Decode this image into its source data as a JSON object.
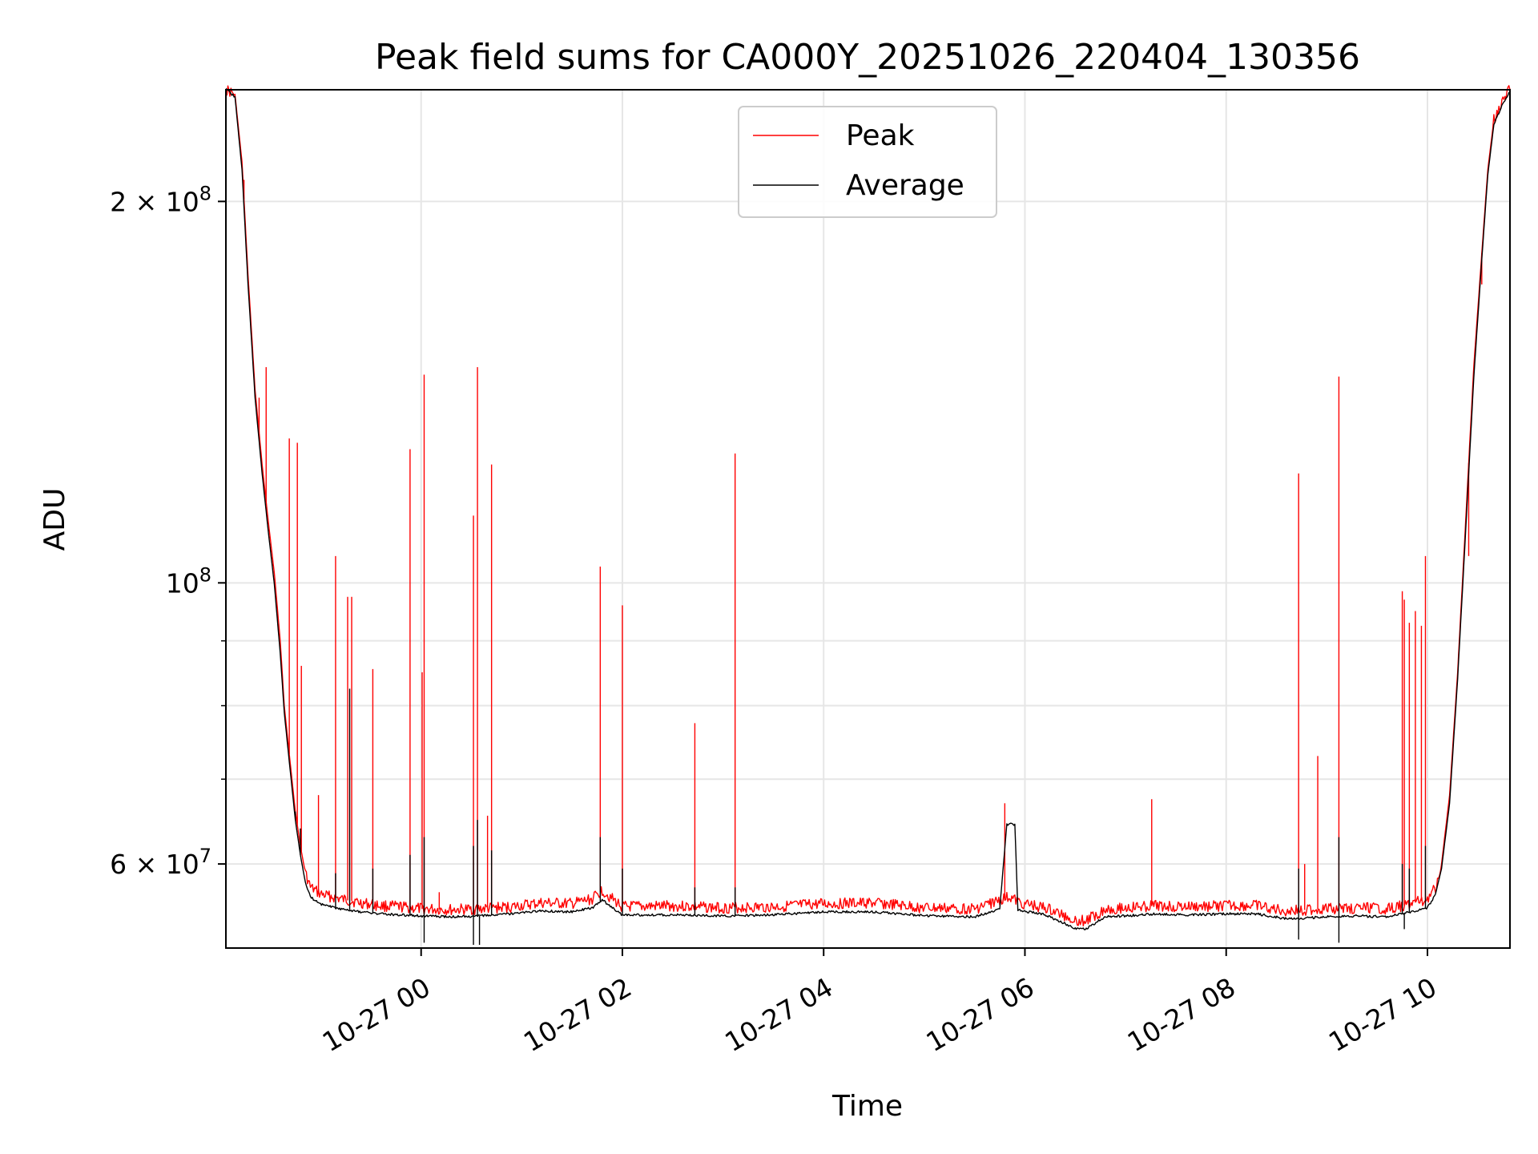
{
  "chart_data": {
    "type": "line",
    "title": "Peak field sums for CA000Y_20251026_220404_130356",
    "xlabel": "Time",
    "ylabel": "ADU",
    "yscale": "log",
    "ylim": [
      51500000,
      245000000
    ],
    "xlim": [
      -1.94,
      10.82
    ],
    "x_unit": "hours relative to 2025-10-27 00:00",
    "grid": true,
    "legend_position": "upper center",
    "x_ticks": [
      {
        "value": 0,
        "label": "10-27 00"
      },
      {
        "value": 2,
        "label": "10-27 02"
      },
      {
        "value": 4,
        "label": "10-27 04"
      },
      {
        "value": 6,
        "label": "10-27 06"
      },
      {
        "value": 8,
        "label": "10-27 08"
      },
      {
        "value": 10,
        "label": "10-27 10"
      }
    ],
    "y_major_ticks": [
      {
        "value": 60000000,
        "label_mantissa": "6",
        "label_exp": "7"
      },
      {
        "value": 100000000,
        "label_mantissa": "",
        "label_exp": "8"
      },
      {
        "value": 200000000,
        "label_mantissa": "2",
        "label_exp": "8"
      }
    ],
    "y_minor_ticks": [
      70000000,
      80000000,
      90000000
    ],
    "series": [
      {
        "name": "Peak",
        "color": "#ff0000",
        "baseline": [
          [
            -1.94,
            245000000
          ],
          [
            -1.85,
            243000000
          ],
          [
            -1.78,
            215000000
          ],
          [
            -1.72,
            175000000
          ],
          [
            -1.65,
            142000000
          ],
          [
            -1.58,
            124000000
          ],
          [
            -1.52,
            112000000
          ],
          [
            -1.46,
            102000000
          ],
          [
            -1.4,
            90000000
          ],
          [
            -1.36,
            80000000
          ],
          [
            -1.3,
            72000000
          ],
          [
            -1.25,
            66000000
          ],
          [
            -1.2,
            62000000
          ],
          [
            -1.15,
            59000000
          ],
          [
            -1.1,
            57500000
          ],
          [
            -1.0,
            56800000
          ],
          [
            -0.8,
            56300000
          ],
          [
            -0.6,
            55900000
          ],
          [
            -0.4,
            55600000
          ],
          [
            -0.2,
            55500000
          ],
          [
            0.0,
            55300000
          ],
          [
            0.3,
            55200000
          ],
          [
            0.6,
            55300000
          ],
          [
            0.9,
            55500000
          ],
          [
            1.2,
            55900000
          ],
          [
            1.5,
            55800000
          ],
          [
            1.7,
            56300000
          ],
          [
            1.8,
            57200000
          ],
          [
            1.9,
            56300000
          ],
          [
            2.0,
            55500000
          ],
          [
            2.5,
            55600000
          ],
          [
            3.0,
            55400000
          ],
          [
            3.5,
            55500000
          ],
          [
            4.0,
            55800000
          ],
          [
            4.5,
            55900000
          ],
          [
            5.0,
            55400000
          ],
          [
            5.5,
            55300000
          ],
          [
            5.75,
            56200000
          ],
          [
            5.85,
            56500000
          ],
          [
            5.95,
            55900000
          ],
          [
            6.2,
            55400000
          ],
          [
            6.5,
            54200000
          ],
          [
            6.6,
            54100000
          ],
          [
            6.8,
            55300000
          ],
          [
            7.0,
            55400000
          ],
          [
            7.3,
            55600000
          ],
          [
            7.6,
            55500000
          ],
          [
            8.0,
            55600000
          ],
          [
            8.3,
            55600000
          ],
          [
            8.6,
            55100000
          ],
          [
            9.0,
            55300000
          ],
          [
            9.3,
            55400000
          ],
          [
            9.6,
            55300000
          ],
          [
            9.8,
            55700000
          ],
          [
            10.0,
            56300000
          ],
          [
            10.08,
            57500000
          ],
          [
            10.14,
            60000000
          ],
          [
            10.22,
            68000000
          ],
          [
            10.3,
            85000000
          ],
          [
            10.38,
            112000000
          ],
          [
            10.46,
            148000000
          ],
          [
            10.54,
            182000000
          ],
          [
            10.6,
            212000000
          ],
          [
            10.66,
            232000000
          ],
          [
            10.74,
            240000000
          ],
          [
            10.82,
            245000000
          ]
        ],
        "spikes": [
          {
            "x": -1.76,
            "y": 208000000
          },
          {
            "x": -1.61,
            "y": 140000000
          },
          {
            "x": -1.54,
            "y": 148000000
          },
          {
            "x": -1.31,
            "y": 130000000
          },
          {
            "x": -1.23,
            "y": 129000000
          },
          {
            "x": -1.19,
            "y": 86000000
          },
          {
            "x": -1.02,
            "y": 68000000
          },
          {
            "x": -0.85,
            "y": 105000000
          },
          {
            "x": -0.73,
            "y": 97500000
          },
          {
            "x": -0.69,
            "y": 97500000
          },
          {
            "x": -0.48,
            "y": 85500000
          },
          {
            "x": -0.11,
            "y": 127500000
          },
          {
            "x": 0.01,
            "y": 85000000
          },
          {
            "x": 0.03,
            "y": 146000000
          },
          {
            "x": 0.18,
            "y": 57000000
          },
          {
            "x": 0.52,
            "y": 113000000
          },
          {
            "x": 0.56,
            "y": 148000000
          },
          {
            "x": 0.66,
            "y": 65500000
          },
          {
            "x": 0.7,
            "y": 124000000
          },
          {
            "x": 1.78,
            "y": 103000000
          },
          {
            "x": 2.0,
            "y": 96000000
          },
          {
            "x": 2.72,
            "y": 77500000
          },
          {
            "x": 3.12,
            "y": 126500000
          },
          {
            "x": 5.8,
            "y": 67000000
          },
          {
            "x": 7.26,
            "y": 67500000
          },
          {
            "x": 8.72,
            "y": 122000000
          },
          {
            "x": 8.78,
            "y": 60000000
          },
          {
            "x": 8.91,
            "y": 73000000
          },
          {
            "x": 9.12,
            "y": 145500000
          },
          {
            "x": 9.75,
            "y": 98500000
          },
          {
            "x": 9.77,
            "y": 97000000
          },
          {
            "x": 9.82,
            "y": 93000000
          },
          {
            "x": 9.88,
            "y": 95000000
          },
          {
            "x": 9.94,
            "y": 92500000
          },
          {
            "x": 9.98,
            "y": 105000000
          },
          {
            "x": 10.41,
            "y": 105000000
          },
          {
            "x": 10.54,
            "y": 172000000
          }
        ]
      },
      {
        "name": "Average",
        "color": "#000000",
        "baseline": [
          [
            -1.94,
            245000000
          ],
          [
            -1.85,
            242000000
          ],
          [
            -1.78,
            212000000
          ],
          [
            -1.72,
            172000000
          ],
          [
            -1.65,
            140000000
          ],
          [
            -1.58,
            122000000
          ],
          [
            -1.52,
            110000000
          ],
          [
            -1.46,
            100000000
          ],
          [
            -1.4,
            88000000
          ],
          [
            -1.36,
            79000000
          ],
          [
            -1.3,
            71000000
          ],
          [
            -1.25,
            65000000
          ],
          [
            -1.2,
            61000000
          ],
          [
            -1.15,
            58000000
          ],
          [
            -1.1,
            56500000
          ],
          [
            -1.0,
            55800000
          ],
          [
            -0.8,
            55300000
          ],
          [
            -0.6,
            55000000
          ],
          [
            -0.4,
            54800000
          ],
          [
            -0.2,
            54700000
          ],
          [
            0.0,
            54600000
          ],
          [
            0.3,
            54500000
          ],
          [
            0.6,
            54600000
          ],
          [
            0.9,
            54800000
          ],
          [
            1.2,
            55100000
          ],
          [
            1.5,
            55000000
          ],
          [
            1.7,
            55400000
          ],
          [
            1.8,
            56200000
          ],
          [
            1.9,
            55400000
          ],
          [
            2.0,
            54700000
          ],
          [
            2.5,
            54700000
          ],
          [
            3.0,
            54600000
          ],
          [
            3.5,
            54700000
          ],
          [
            4.0,
            55000000
          ],
          [
            4.5,
            55000000
          ],
          [
            5.0,
            54600000
          ],
          [
            5.5,
            54500000
          ],
          [
            5.75,
            55300000
          ],
          [
            5.82,
            64500000
          ],
          [
            5.9,
            64500000
          ],
          [
            5.93,
            55200000
          ],
          [
            6.2,
            54700000
          ],
          [
            6.5,
            53400000
          ],
          [
            6.6,
            53300000
          ],
          [
            6.8,
            54500000
          ],
          [
            7.0,
            54600000
          ],
          [
            7.3,
            54800000
          ],
          [
            7.6,
            54700000
          ],
          [
            8.0,
            54800000
          ],
          [
            8.3,
            54800000
          ],
          [
            8.6,
            54300000
          ],
          [
            9.0,
            54500000
          ],
          [
            9.3,
            54600000
          ],
          [
            9.6,
            54500000
          ],
          [
            9.8,
            54900000
          ],
          [
            10.0,
            55400000
          ],
          [
            10.08,
            56800000
          ],
          [
            10.14,
            59500000
          ],
          [
            10.22,
            67000000
          ],
          [
            10.3,
            84000000
          ],
          [
            10.38,
            110000000
          ],
          [
            10.46,
            145000000
          ],
          [
            10.54,
            180000000
          ],
          [
            10.6,
            210000000
          ],
          [
            10.66,
            230000000
          ],
          [
            10.74,
            238000000
          ],
          [
            10.82,
            244000000
          ]
        ],
        "spikes": [
          {
            "x": -1.25,
            "y": 66000000
          },
          {
            "x": -1.2,
            "y": 64000000
          },
          {
            "x": -0.85,
            "y": 59000000
          },
          {
            "x": -0.71,
            "y": 82500000
          },
          {
            "x": -0.48,
            "y": 59500000
          },
          {
            "x": -0.11,
            "y": 61000000
          },
          {
            "x": 0.03,
            "y": 63000000
          },
          {
            "x": 0.52,
            "y": 62000000
          },
          {
            "x": 0.56,
            "y": 65000000
          },
          {
            "x": 0.7,
            "y": 61500000
          },
          {
            "x": 1.78,
            "y": 63000000
          },
          {
            "x": 2.0,
            "y": 59500000
          },
          {
            "x": 2.72,
            "y": 57500000
          },
          {
            "x": 3.12,
            "y": 57500000
          },
          {
            "x": 8.72,
            "y": 59500000
          },
          {
            "x": 9.12,
            "y": 63000000
          },
          {
            "x": 9.75,
            "y": 60000000
          },
          {
            "x": 9.82,
            "y": 59500000
          },
          {
            "x": 9.98,
            "y": 62000000
          }
        ],
        "dips": [
          {
            "x": 0.03,
            "y": 52000000
          },
          {
            "x": 0.52,
            "y": 51800000
          },
          {
            "x": 0.58,
            "y": 51800000
          },
          {
            "x": 8.72,
            "y": 52300000
          },
          {
            "x": 9.12,
            "y": 52000000
          },
          {
            "x": 9.77,
            "y": 53300000
          }
        ]
      }
    ]
  }
}
